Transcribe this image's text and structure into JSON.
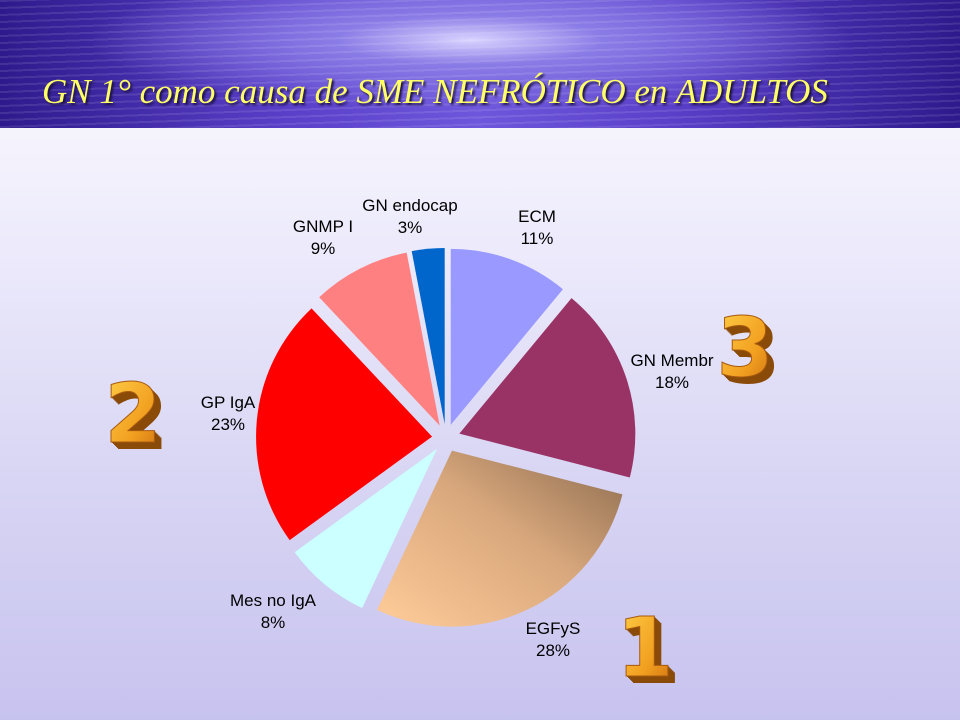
{
  "slide": {
    "title": "GN 1° como causa de SME NEFRÓTICO en ADULTOS"
  },
  "ranking_numbers": [
    {
      "value": "1",
      "slice": "EGFyS"
    },
    {
      "value": "2",
      "slice": "GP IgA"
    },
    {
      "value": "3",
      "slice": "GN Membr"
    }
  ],
  "chart_data": {
    "type": "pie",
    "title": "",
    "exploded": true,
    "start_direction": "12 o'clock",
    "direction": "clockwise",
    "slices": [
      {
        "name": "ECM",
        "value": 11,
        "label": "11%",
        "color": "#9999ff"
      },
      {
        "name": "GN Membr",
        "value": 18,
        "label": "18%",
        "color": "#993366"
      },
      {
        "name": "EGFyS",
        "value": 28,
        "label": "28%",
        "color": "#ffcc99"
      },
      {
        "name": "Mes no IgA",
        "value": 8,
        "label": "8%",
        "color": "#ccffff"
      },
      {
        "name": "GP IgA",
        "value": 23,
        "label": "23%",
        "color": "#ff0000"
      },
      {
        "name": "GNMP I",
        "value": 9,
        "label": "9%",
        "color": "#ff8080"
      },
      {
        "name": "GN endocap",
        "value": 3,
        "label": "3%",
        "color": "#0066cc"
      }
    ]
  }
}
